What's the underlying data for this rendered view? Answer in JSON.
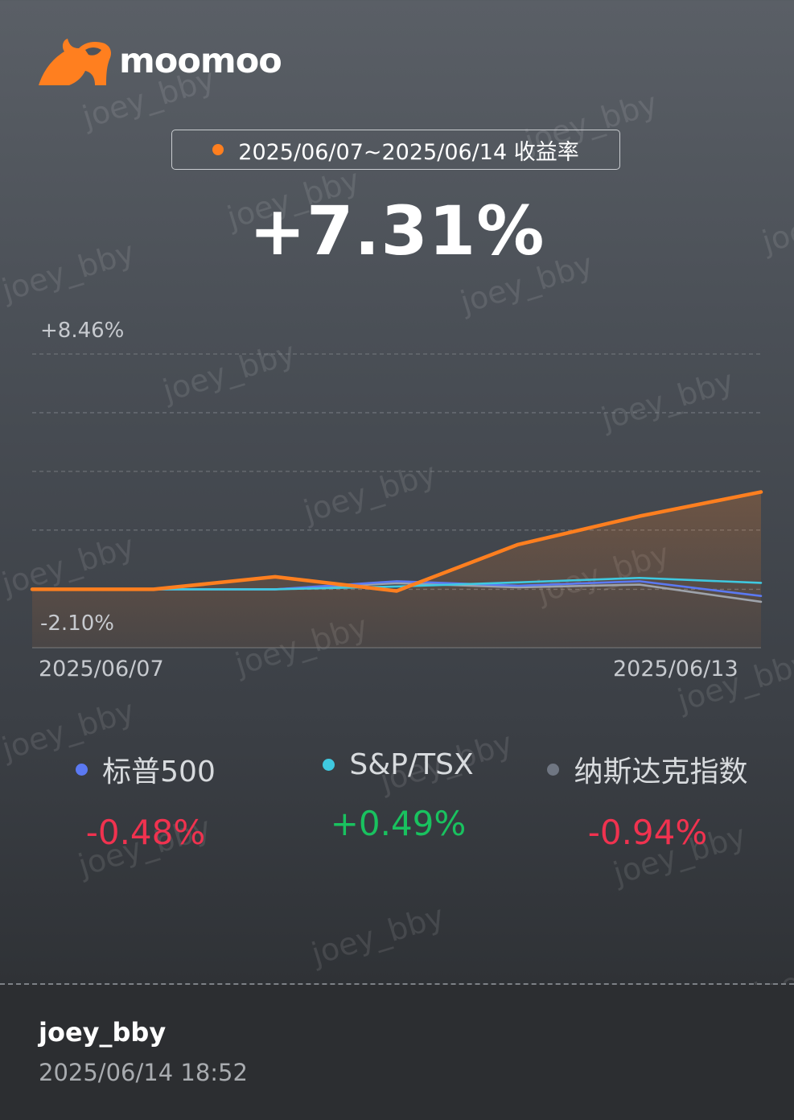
{
  "brand": {
    "name": "moomoo",
    "accent": "#ff7f1f"
  },
  "period_label": "2025/06/07~2025/06/14 收益率",
  "total_return": "+7.31%",
  "chart_data": {
    "type": "line",
    "x": [
      "2025/06/07",
      "2025/06/08",
      "2025/06/09",
      "2025/06/10",
      "2025/06/11",
      "2025/06/12",
      "2025/06/13"
    ],
    "ylim": [
      -2.1,
      8.46
    ],
    "ytick_labels": [
      "+8.46%",
      "-2.10%"
    ],
    "xtick_labels": [
      "2025/06/07",
      "2025/06/13"
    ],
    "grid": true,
    "series": [
      {
        "name": "",
        "color": "#ff7f1f",
        "values": [
          0.0,
          0.0,
          0.45,
          -0.06,
          1.61,
          2.63,
          3.5
        ]
      },
      {
        "name": "标普500",
        "color": "#5b79f2",
        "values": [
          0.0,
          0.0,
          0.0,
          0.29,
          0.13,
          0.29,
          -0.24
        ]
      },
      {
        "name": "S&P/TSX",
        "color": "#3fc9e0",
        "values": [
          0.0,
          0.0,
          0.0,
          0.1,
          0.25,
          0.41,
          0.23
        ]
      },
      {
        "name": "纳斯达克指数",
        "color": "#9ea3ab",
        "values": [
          0.0,
          0.0,
          0.0,
          0.22,
          0.07,
          0.17,
          -0.45
        ]
      }
    ]
  },
  "legend": [
    {
      "name": "标普500",
      "color": "#5b79f2",
      "value": "-0.48%",
      "sign": "neg"
    },
    {
      "name": "S&P/TSX",
      "color": "#3fc9e0",
      "value": "+0.49%",
      "sign": "pos"
    },
    {
      "name": "纳斯达克指数",
      "color": "#6f7682",
      "value": "-0.94%",
      "sign": "neg"
    }
  ],
  "watermark": "joey_bby",
  "footer": {
    "username": "joey_bby",
    "timestamp": "2025/06/14 18:52"
  }
}
